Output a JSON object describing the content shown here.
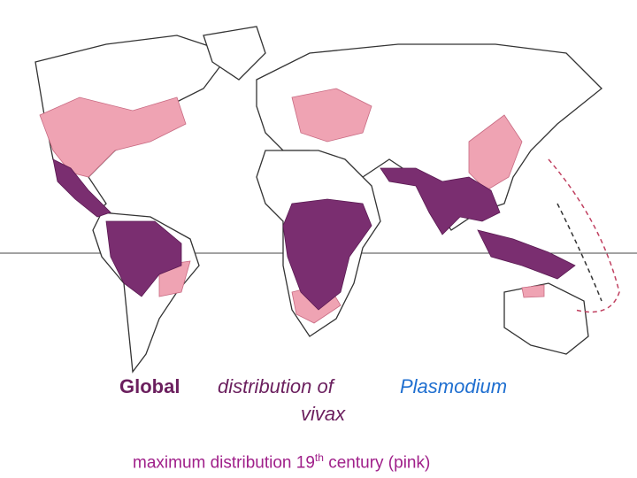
{
  "title": {
    "word1": "Global",
    "word2": "distribution of",
    "species_genus": "Plasmodium",
    "species_name": "vivax"
  },
  "caption": {
    "text": "maximum distribution 19",
    "superscript": "th",
    "rest": "century (pink)"
  }
}
